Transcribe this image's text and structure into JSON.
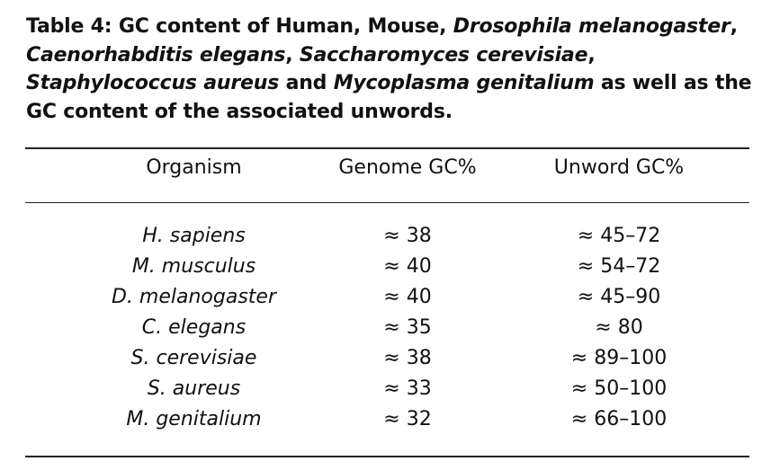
{
  "caption": {
    "prefix": "Table 4: GC content of Human, Mouse, ",
    "drosophila": "Drosophila melanogaster",
    "sep1": ", ",
    "caenorhabditis": "Caenorhabditis elegans",
    "sep2": ", ",
    "saccharomyces": "Saccharomyces cerevisiae",
    "sep3": ", ",
    "staphylococcus": "Staphylococcus aureus",
    "and": " and ",
    "mycoplasma": "Mycoplasma genitalium",
    "suffix": " as well as the GC content of the associated unwords."
  },
  "table": {
    "headers": [
      "Organism",
      "Genome GC%",
      "Unword GC%"
    ],
    "rows": [
      {
        "organism": "H. sapiens",
        "genome_gc": "≈ 38",
        "unword_gc": "≈ 45–72"
      },
      {
        "organism": "M. musculus",
        "genome_gc": "≈ 40",
        "unword_gc": "≈ 54–72"
      },
      {
        "organism": "D. melanogaster",
        "genome_gc": "≈ 40",
        "unword_gc": "≈ 45–90"
      },
      {
        "organism": "C. elegans",
        "genome_gc": "≈ 35",
        "unword_gc": "≈ 80"
      },
      {
        "organism": "S. cerevisiae",
        "genome_gc": "≈ 38",
        "unword_gc": "≈ 89–100"
      },
      {
        "organism": "S. aureus",
        "genome_gc": "≈ 33",
        "unword_gc": "≈ 50–100"
      },
      {
        "organism": "M. genitalium",
        "genome_gc": "≈ 32",
        "unword_gc": "≈ 66–100"
      }
    ]
  }
}
